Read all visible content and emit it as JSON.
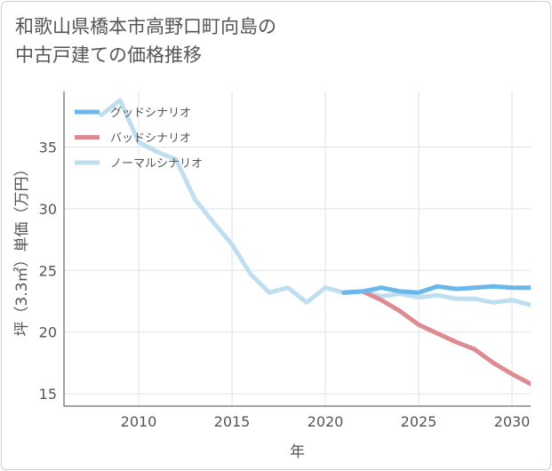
{
  "chart_data": {
    "type": "line",
    "title": "和歌山県橋本市高野口町向島の\n中古戸建ての価格推移",
    "xlabel": "年",
    "ylabel": "坪（3.3㎡）単価（万円）",
    "xlim": [
      2006,
      2031
    ],
    "ylim": [
      14,
      39.5
    ],
    "xticks": [
      2010,
      2015,
      2020,
      2025,
      2030
    ],
    "yticks": [
      15,
      20,
      25,
      30,
      35
    ],
    "legend_position": "top-left",
    "series": [
      {
        "name": "グッドシナリオ",
        "color": "#6ab8ea",
        "x": [
          2021,
          2022,
          2023,
          2024,
          2025,
          2026,
          2027,
          2028,
          2029,
          2030,
          2031
        ],
        "values": [
          23.2,
          23.3,
          23.6,
          23.3,
          23.2,
          23.7,
          23.5,
          23.6,
          23.7,
          23.6,
          23.6
        ]
      },
      {
        "name": "バッドシナリオ",
        "color": "#de8a92",
        "x": [
          2021,
          2022,
          2023,
          2024,
          2025,
          2026,
          2027,
          2028,
          2029,
          2030,
          2031
        ],
        "values": [
          23.2,
          23.3,
          22.6,
          21.7,
          20.6,
          19.9,
          19.2,
          18.6,
          17.5,
          16.6,
          15.8
        ]
      },
      {
        "name": "ノーマルシナリオ",
        "color": "#bfdfee",
        "x": [
          2008,
          2009,
          2010,
          2011,
          2012,
          2013,
          2014,
          2015,
          2016,
          2017,
          2018,
          2019,
          2020,
          2021,
          2022,
          2023,
          2024,
          2025,
          2026,
          2027,
          2028,
          2029,
          2030,
          2031
        ],
        "values": [
          37.6,
          38.8,
          35.4,
          34.6,
          34.0,
          30.8,
          28.9,
          27.1,
          24.7,
          23.2,
          23.6,
          22.4,
          23.6,
          23.2,
          23.3,
          22.9,
          23.1,
          22.8,
          23.0,
          22.7,
          22.7,
          22.4,
          22.6,
          22.2
        ]
      }
    ]
  }
}
